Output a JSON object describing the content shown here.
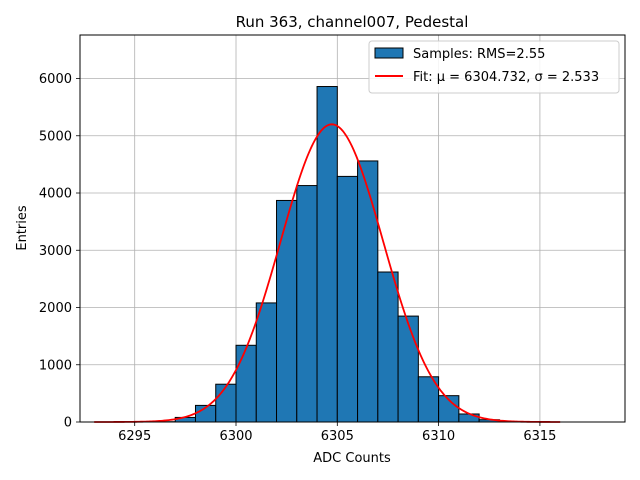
{
  "chart_data": {
    "type": "bar",
    "title": "Run 363, channel007, Pedestal",
    "xlabel": "ADC Counts",
    "ylabel": "Entries",
    "xlim": [
      6292.3,
      6319.2
    ],
    "ylim": [
      0,
      6760
    ],
    "xticks": [
      6295,
      6300,
      6305,
      6310,
      6315
    ],
    "yticks": [
      0,
      1000,
      2000,
      3000,
      4000,
      5000,
      6000
    ],
    "grid": true,
    "legend_position": "top-right",
    "series": [
      {
        "name": "Samples: RMS=2.55",
        "kind": "histogram",
        "color": "#1f77b4",
        "edgecolor": "#000000",
        "bins": [
          {
            "x0": 6296,
            "x1": 6297,
            "value": 5
          },
          {
            "x0": 6297,
            "x1": 6298,
            "value": 80
          },
          {
            "x0": 6298,
            "x1": 6299,
            "value": 290
          },
          {
            "x0": 6299,
            "x1": 6300,
            "value": 660
          },
          {
            "x0": 6300,
            "x1": 6301,
            "value": 1340
          },
          {
            "x0": 6301,
            "x1": 6302,
            "value": 2080
          },
          {
            "x0": 6302,
            "x1": 6303,
            "value": 3870
          },
          {
            "x0": 6303,
            "x1": 6304,
            "value": 4130
          },
          {
            "x0": 6304,
            "x1": 6305,
            "value": 5860
          },
          {
            "x0": 6305,
            "x1": 6306,
            "value": 4290
          },
          {
            "x0": 6306,
            "x1": 6307,
            "value": 4560
          },
          {
            "x0": 6307,
            "x1": 6308,
            "value": 2620
          },
          {
            "x0": 6308,
            "x1": 6309,
            "value": 1850
          },
          {
            "x0": 6309,
            "x1": 6310,
            "value": 790
          },
          {
            "x0": 6310,
            "x1": 6311,
            "value": 460
          },
          {
            "x0": 6311,
            "x1": 6312,
            "value": 140
          },
          {
            "x0": 6312,
            "x1": 6313,
            "value": 40
          }
        ]
      },
      {
        "name": "Fit: μ = 6304.732, σ = 2.533",
        "kind": "line",
        "color": "#ff0000",
        "fit": {
          "mu": 6304.732,
          "sigma": 2.533,
          "amplitude": 5200,
          "x_range": [
            6293,
            6316
          ]
        }
      }
    ]
  }
}
